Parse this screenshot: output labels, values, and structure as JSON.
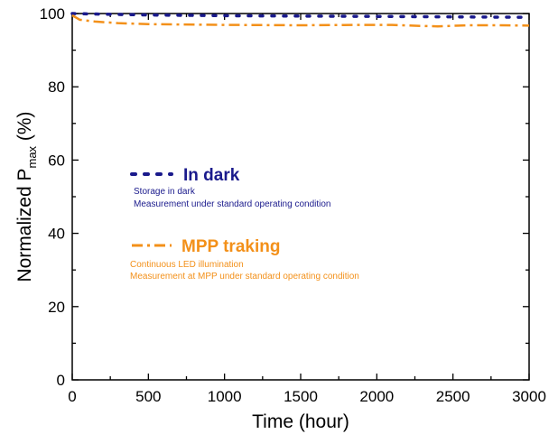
{
  "chart_data": {
    "type": "line",
    "xlabel": "Time (hour)",
    "ylabel_main": "Normalized P",
    "ylabel_sub": "max",
    "ylabel_unit": "(%)",
    "xlim": [
      0,
      3000
    ],
    "ylim": [
      0,
      100
    ],
    "x_ticks": [
      0,
      500,
      1000,
      1500,
      2000,
      2500,
      3000
    ],
    "y_ticks": [
      0,
      20,
      40,
      60,
      80,
      100
    ],
    "grid": false,
    "series": [
      {
        "name": "In dark",
        "style": "dotted",
        "color": "#1a1a8c",
        "points": [
          [
            0,
            100
          ],
          [
            100,
            99.9
          ],
          [
            500,
            99.6
          ],
          [
            1000,
            99.4
          ],
          [
            1500,
            99.3
          ],
          [
            2000,
            99.2
          ],
          [
            2500,
            99.1
          ],
          [
            2950,
            99.0
          ]
        ]
      },
      {
        "name": "MPP traking",
        "style": "dash-dot",
        "color": "#f39019",
        "points": [
          [
            0,
            99.5
          ],
          [
            50,
            98.3
          ],
          [
            150,
            97.8
          ],
          [
            300,
            97.4
          ],
          [
            500,
            97.1
          ],
          [
            1000,
            96.9
          ],
          [
            1500,
            96.8
          ],
          [
            1900,
            96.9
          ],
          [
            2100,
            96.9
          ],
          [
            2300,
            96.6
          ],
          [
            2400,
            96.5
          ],
          [
            2600,
            96.8
          ],
          [
            2800,
            96.8
          ],
          [
            3000,
            96.7
          ]
        ]
      }
    ],
    "legend": [
      {
        "label": "In dark",
        "desc1": "Storage in dark",
        "desc2": "Measurement under standard operating condition"
      },
      {
        "label": "MPP traking",
        "desc1": "Continuous LED  illumination",
        "desc2": "Measurement at MPP under standard operating condition"
      }
    ]
  }
}
